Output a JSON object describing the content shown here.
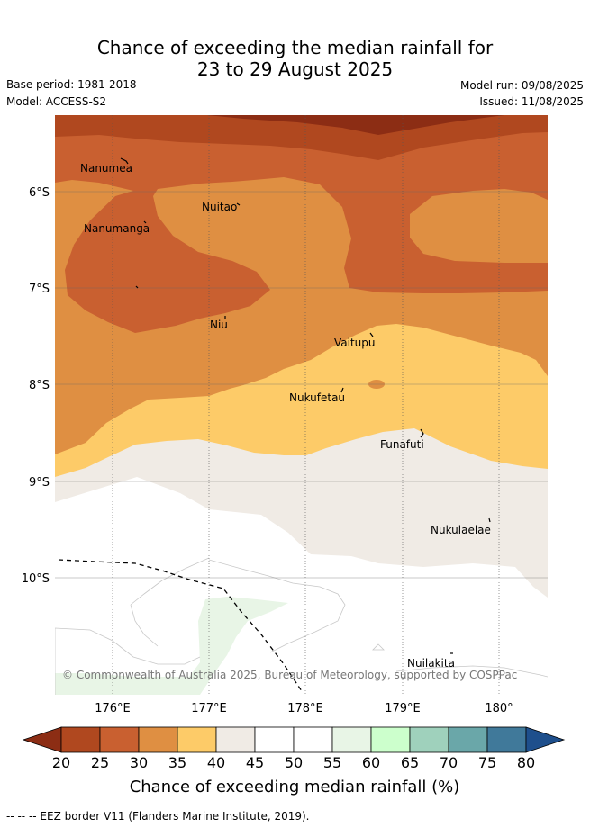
{
  "header": {
    "title_line1": "Chance of exceeding the median rainfall for",
    "title_line2": "23 to 29 August 2025",
    "base_period": "Base period: 1981-2018",
    "model": "Model: ACCESS-S2",
    "model_run": "Model run: 09/08/2025",
    "issued": "Issued: 11/08/2025"
  },
  "map": {
    "lat_labels": [
      "6°S",
      "7°S",
      "8°S",
      "9°S",
      "10°S"
    ],
    "lon_labels": [
      "176°E",
      "177°E",
      "178°E",
      "179°E",
      "180°"
    ],
    "places": [
      "Nanumea",
      "Nuitao",
      "Nanumanga",
      "Niu",
      "Vaitupu",
      "Nukufetau",
      "Funafuti",
      "Nukulaelae",
      "Nuilakita"
    ],
    "copyright": "© Commonwealth of Australia 2025, Bureau of Meteorology, supported by COSPPac"
  },
  "colorbar": {
    "ticks": [
      "20",
      "25",
      "30",
      "35",
      "40",
      "45",
      "50",
      "55",
      "60",
      "65",
      "70",
      "75",
      "80"
    ],
    "colors": [
      "#8c2d14",
      "#b0481f",
      "#c96030",
      "#df8f42",
      "#fdcb68",
      "#f0ebe5",
      "#ffffff",
      "#ffffff",
      "#e8f5e6",
      "#ccffcc",
      "#9fd1bc",
      "#6aa7a9",
      "#40799a",
      "#1e4f8c"
    ],
    "title": "Chance of exceeding median rainfall (%)"
  },
  "footnote": "-- -- -- EEZ border V11 (Flanders Marine Institute, 2019)."
}
